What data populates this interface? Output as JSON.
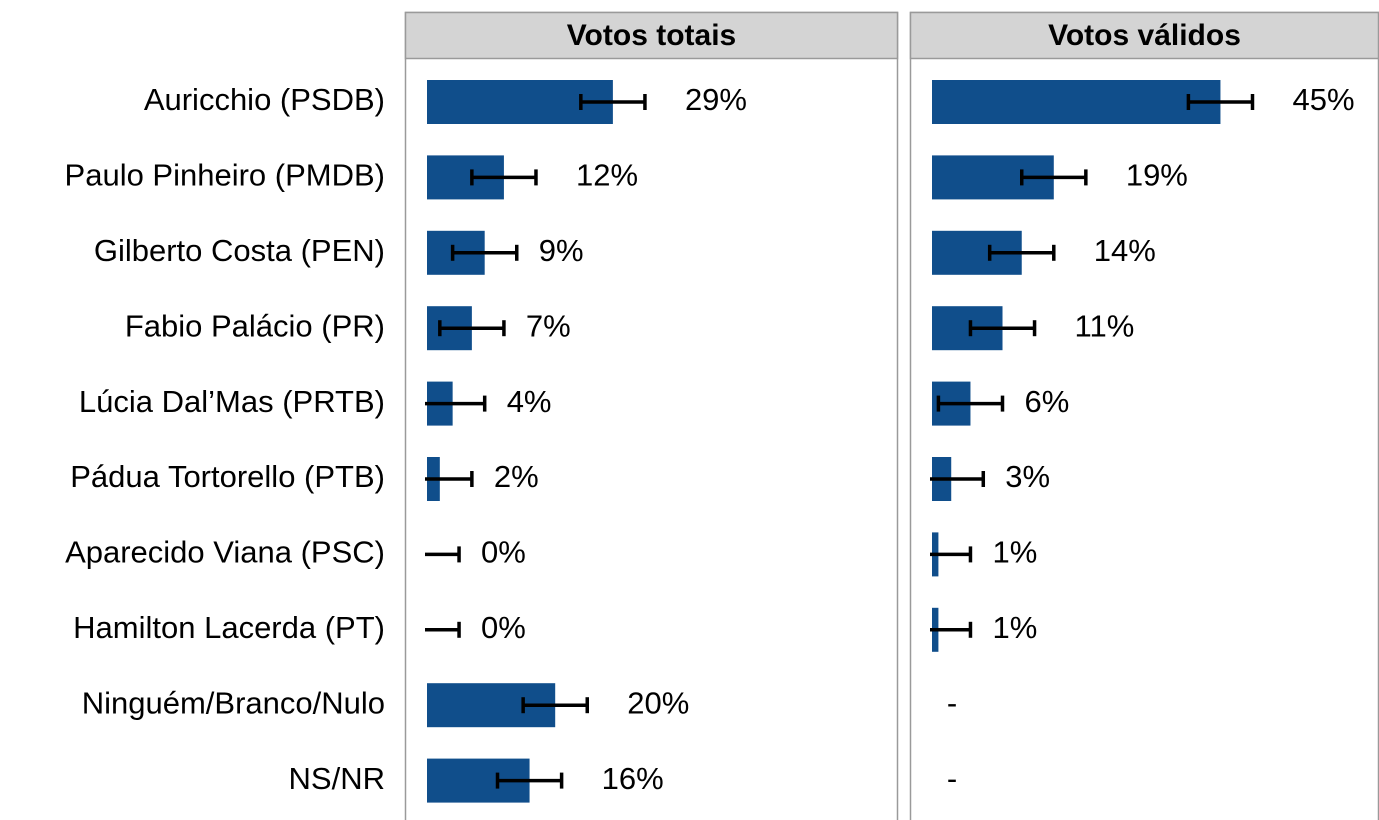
{
  "chart_data": {
    "type": "bar",
    "categories": [
      "Auricchio (PSDB)",
      "Paulo Pinheiro (PMDB)",
      "Gilberto Costa (PEN)",
      "Fabio Palácio (PR)",
      "Lúcia Dal’Mas (PRTB)",
      "Pádua Tortorello (PTB)",
      "Aparecido Viana (PSC)",
      "Hamilton Lacerda (PT)",
      "Ninguém/Branco/Nulo",
      "NS/NR"
    ],
    "xlim": [
      0,
      70
    ],
    "series": [
      {
        "name": "Votos totais",
        "color": "#104e8b",
        "values": [
          29,
          12,
          9,
          7,
          4,
          2,
          0,
          0,
          20,
          16
        ],
        "errors": [
          5,
          5,
          5,
          5,
          5,
          5,
          5,
          5,
          5,
          5
        ],
        "value_labels": [
          "29%",
          "12%",
          "9%",
          "7%",
          "4%",
          "2%",
          "0%",
          "0%",
          "20%",
          "16%"
        ]
      },
      {
        "name": "Votos válidos",
        "color": "#104e8b",
        "values": [
          45,
          19,
          14,
          11,
          6,
          3,
          1,
          1,
          null,
          null
        ],
        "errors": [
          5,
          5,
          5,
          5,
          5,
          5,
          5,
          5,
          null,
          null
        ],
        "value_labels": [
          "45%",
          "19%",
          "14%",
          "11%",
          "6%",
          "3%",
          "1%",
          "1%",
          "-",
          "-"
        ]
      }
    ]
  }
}
